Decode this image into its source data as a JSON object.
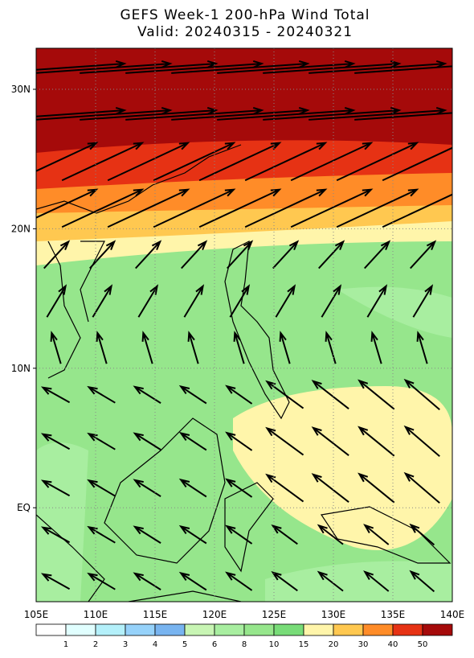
{
  "header": {
    "title": "GEFS Week-1 200-hPa Wind Total",
    "subtitle": "Valid: 20240315 - 20240321"
  },
  "map": {
    "lat_labels": [
      "30N",
      "20N",
      "10N",
      "EQ"
    ],
    "lon_labels": [
      "105E",
      "110E",
      "115E",
      "120E",
      "125E",
      "130E",
      "135E",
      "140E"
    ]
  },
  "colorbar": {
    "labels": [
      1,
      2,
      3,
      4,
      5,
      6,
      8,
      10,
      15,
      20,
      30,
      40,
      50
    ],
    "colors": [
      "#ffffff",
      "#e1ffff",
      "#b4f0fa",
      "#96d2fa",
      "#78b4f0",
      "#c8f5b4",
      "#a8eea0",
      "#96e68c",
      "#78dc78",
      "#fff5aa",
      "#ffc850",
      "#ff8c28",
      "#e63214",
      "#a50a0a"
    ]
  }
}
